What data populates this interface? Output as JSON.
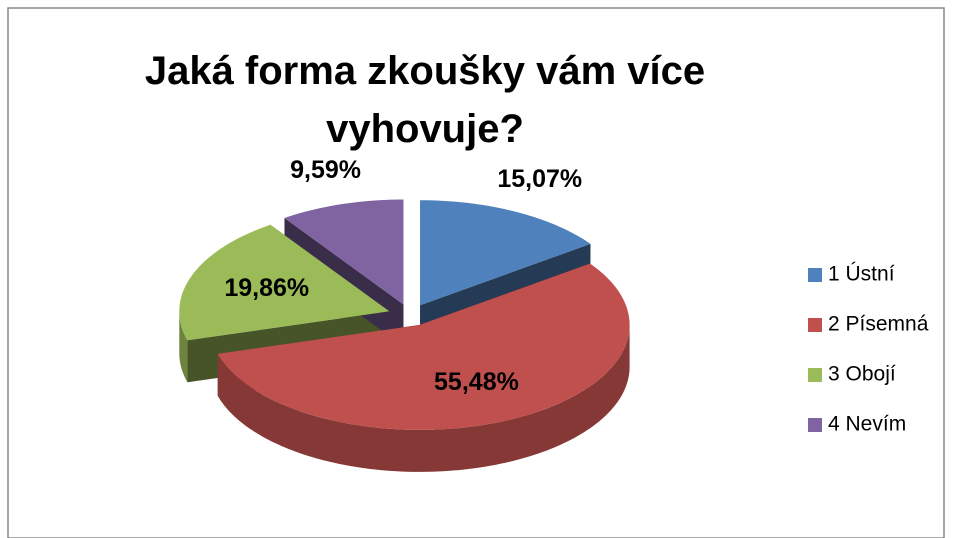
{
  "chart_data": {
    "type": "pie3d",
    "title": "Jaká forma zkoušky vám více vyhovuje?",
    "categories": [
      "1 Ústní",
      "2 Písemná",
      "3 Obojí",
      "4 Nevím"
    ],
    "values": [
      15.07,
      55.48,
      19.86,
      9.59
    ],
    "value_labels": [
      "15,07%",
      "55,48%",
      "19,86%",
      "9,59%"
    ],
    "colors": [
      "#4f81bd",
      "#c0504d",
      "#9bbb59",
      "#8064a2"
    ],
    "legend": "right"
  }
}
